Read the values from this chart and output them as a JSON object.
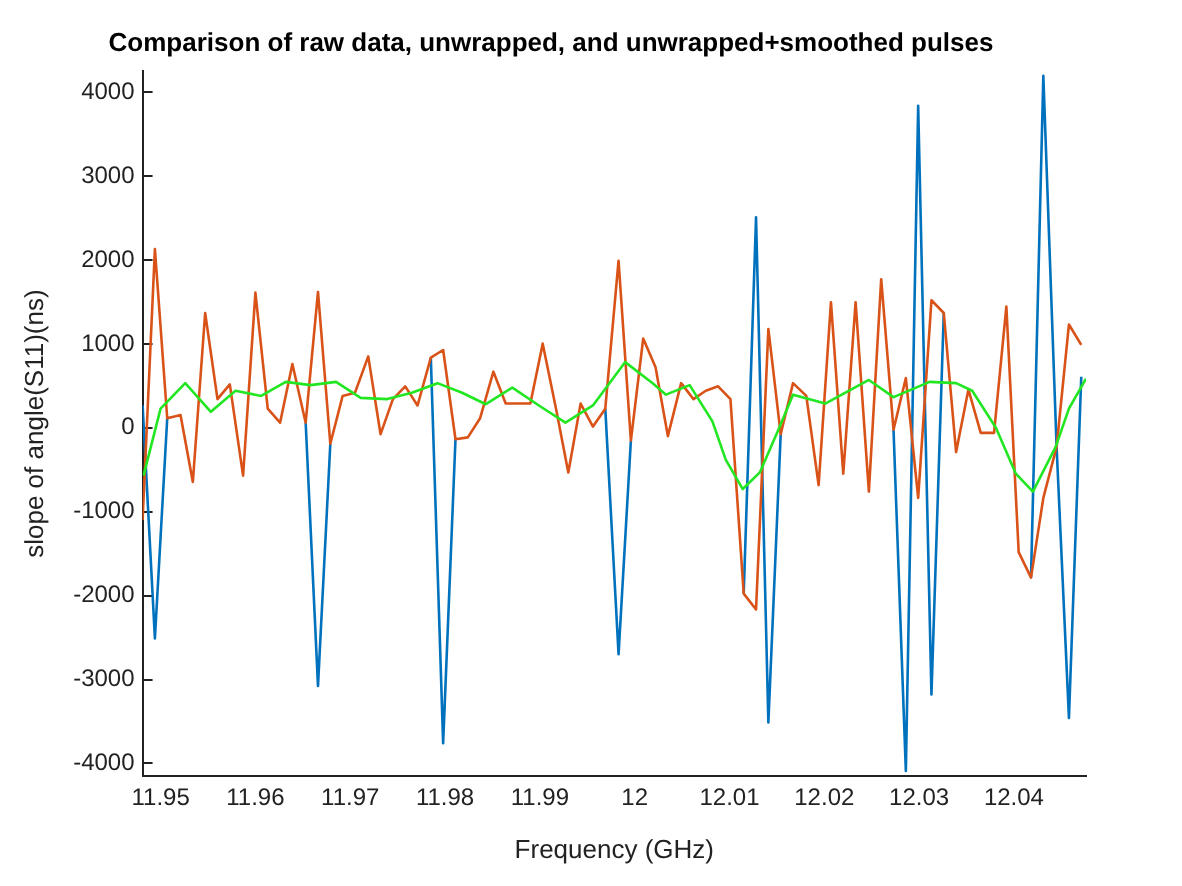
{
  "chart_data": {
    "type": "line",
    "title": "Comparison of raw data, unwrapped, and unwrapped+smoothed pulses",
    "xlabel": "Frequency (GHz)",
    "ylabel": "slope of angle(S11)(ns)",
    "x": [
      11.9481,
      11.9494,
      11.9507,
      11.9521,
      11.9534,
      11.9547,
      11.956,
      11.9573,
      11.9587,
      11.96,
      11.9613,
      11.9626,
      11.9639,
      11.9653,
      11.9666,
      11.9679,
      11.9692,
      11.9705,
      11.9719,
      11.9732,
      11.9745,
      11.9758,
      11.9771,
      11.9785,
      11.9798,
      11.9811,
      11.9824,
      11.9837,
      11.9851,
      11.9864,
      11.9877,
      11.989,
      11.9903,
      11.9917,
      11.993,
      11.9943,
      11.9956,
      11.9969,
      11.9983,
      11.9996,
      12.0009,
      12.0022,
      12.0035,
      12.0049,
      12.0062,
      12.0075,
      12.0088,
      12.0101,
      12.0115,
      12.0128,
      12.0141,
      12.0154,
      12.0167,
      12.0181,
      12.0194,
      12.0207,
      12.022,
      12.0233,
      12.0247,
      12.026,
      12.0273,
      12.0286,
      12.0299,
      12.0313,
      12.0326,
      12.0339,
      12.0352,
      12.0365,
      12.0379,
      12.0392,
      12.0405,
      12.0418,
      12.0431,
      12.0445,
      12.0458,
      12.0471
    ],
    "series": [
      {
        "color": "#0072bd",
        "values": [
          270,
          -2510,
          114,
          null,
          null,
          null,
          null,
          null,
          null,
          null,
          null,
          null,
          null,
          61,
          -3078,
          -190,
          null,
          null,
          null,
          null,
          null,
          null,
          null,
          836,
          -3760,
          -137,
          null,
          null,
          null,
          null,
          null,
          null,
          null,
          null,
          null,
          null,
          null,
          228,
          -2698,
          -152,
          null,
          null,
          null,
          null,
          null,
          null,
          null,
          null,
          -1976,
          2508,
          -3511,
          -76,
          null,
          null,
          null,
          null,
          null,
          null,
          null,
          null,
          -23,
          -4089,
          3838,
          -3177,
          1368,
          null,
          null,
          null,
          null,
          null,
          null,
          -1786,
          4195,
          -228,
          -3458,
          608
        ]
      },
      {
        "color": "#d95319",
        "values": [
          -1100,
          2130,
          114,
          152,
          -646,
          1368,
          342,
          517,
          -570,
          1611,
          228,
          61,
          760,
          61,
          1619,
          -190,
          380,
          418,
          851,
          -76,
          342,
          494,
          266,
          836,
          927,
          -137,
          -114,
          114,
          669,
          289,
          289,
          289,
          1003,
          230,
          -532,
          289,
          15,
          228,
          1991,
          -152,
          1064,
          722,
          -99,
          532,
          342,
          441,
          494,
          342,
          -1976,
          -2166,
          1178,
          -76,
          532,
          380,
          -684,
          1497,
          -547,
          1497,
          -760,
          1771,
          -23,
          593,
          -836,
          1520,
          1368,
          -289,
          456,
          -61,
          -61,
          1444,
          -1482,
          -1786,
          -836,
          -228,
          1231,
          988
        ]
      },
      {
        "color": "#22e622",
        "x": [
          11.9482,
          11.95,
          11.9526,
          11.9553,
          11.9579,
          11.9606,
          11.9632,
          11.9658,
          11.9685,
          11.9711,
          11.9739,
          11.9765,
          11.9792,
          11.9818,
          11.9843,
          11.9871,
          11.9899,
          11.9927,
          11.9956,
          11.999,
          12.0019,
          12.0033,
          12.0058,
          12.0082,
          12.0096,
          12.0114,
          12.0132,
          12.0151,
          12.0167,
          12.0201,
          12.0247,
          12.0273,
          12.0311,
          12.0339,
          12.0356,
          12.0381,
          12.0402,
          12.042,
          12.0444,
          12.0458,
          12.0476
        ],
        "values": [
          -570,
          228,
          532,
          190,
          441,
          380,
          547,
          509,
          547,
          357,
          342,
          418,
          532,
          418,
          281,
          479,
          266,
          61,
          266,
          783,
          532,
          395,
          509,
          76,
          -380,
          -730,
          -532,
          -38,
          395,
          289,
          570,
          365,
          547,
          532,
          441,
          0,
          -547,
          -760,
          -228,
          228,
          585
        ]
      }
    ],
    "xlim": [
      11.9481,
      12.0476
    ],
    "ylim": [
      -4150,
      4250
    ],
    "xticks": [
      11.95,
      11.96,
      11.97,
      11.98,
      11.99,
      12,
      12.01,
      12.02,
      12.03,
      12.04
    ],
    "yticks": [
      -4000,
      -3000,
      -2000,
      -1000,
      0,
      1000,
      2000,
      3000,
      4000
    ],
    "grid": false,
    "legend": false,
    "marker": "none",
    "line_style": "solid"
  }
}
